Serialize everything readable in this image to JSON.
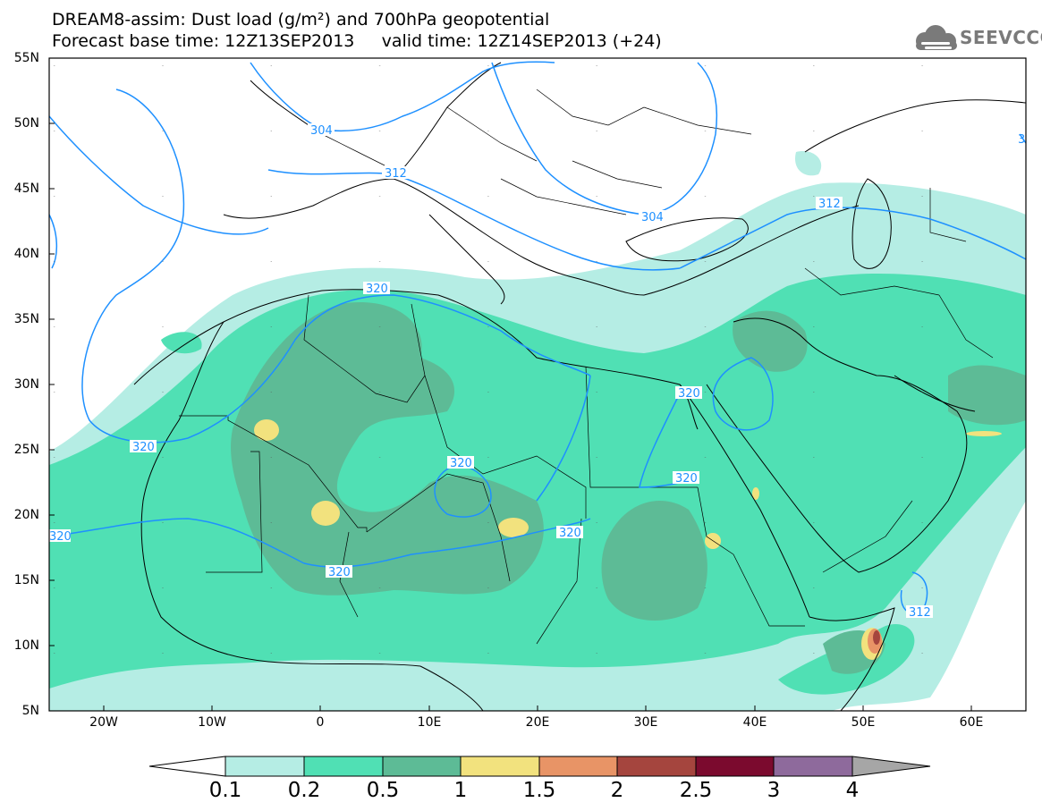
{
  "header": {
    "line1": "DREAM8-assim: Dust load (g/m²) and 700hPa geopotential",
    "line2": "Forecast base time: 12Z13SEP2013     valid time: 12Z14SEP2013 (+24)"
  },
  "logo": {
    "text": "SEEVCCC",
    "icon": "cloud-icon"
  },
  "map": {
    "lat_labels": [
      "55N",
      "50N",
      "45N",
      "40N",
      "35N",
      "30N",
      "25N",
      "20N",
      "15N",
      "10N",
      "5N"
    ],
    "lon_labels": [
      "20W",
      "10W",
      "0",
      "10E",
      "20E",
      "30E",
      "40E",
      "50E",
      "60E"
    ],
    "lat_range": [
      5,
      55
    ],
    "lon_range": [
      -25,
      65
    ],
    "contour_labels": [
      "304",
      "312",
      "304",
      "312",
      "320",
      "320",
      "320",
      "320",
      "320",
      "320",
      "320",
      "320",
      "312",
      "3"
    ]
  },
  "colorbar": {
    "labels": [
      "0.1",
      "0.2",
      "0.5",
      "1",
      "1.5",
      "2",
      "2.5",
      "3",
      "4"
    ],
    "colors": [
      "#ffffff",
      "#b5ede4",
      "#50e0b4",
      "#5dbb96",
      "#f2e27e",
      "#e89466",
      "#a5453e",
      "#7b0a2e",
      "#8e6a9c",
      "#a6a6a6"
    ]
  },
  "colors": {
    "dust_low": "#b5ede4",
    "dust_mid": "#50e0b4",
    "dust_high": "#5dbb96",
    "dust_1": "#f2e27e",
    "dust_15": "#e89466",
    "dust_2": "#a5453e",
    "contour": "#1e90ff"
  }
}
